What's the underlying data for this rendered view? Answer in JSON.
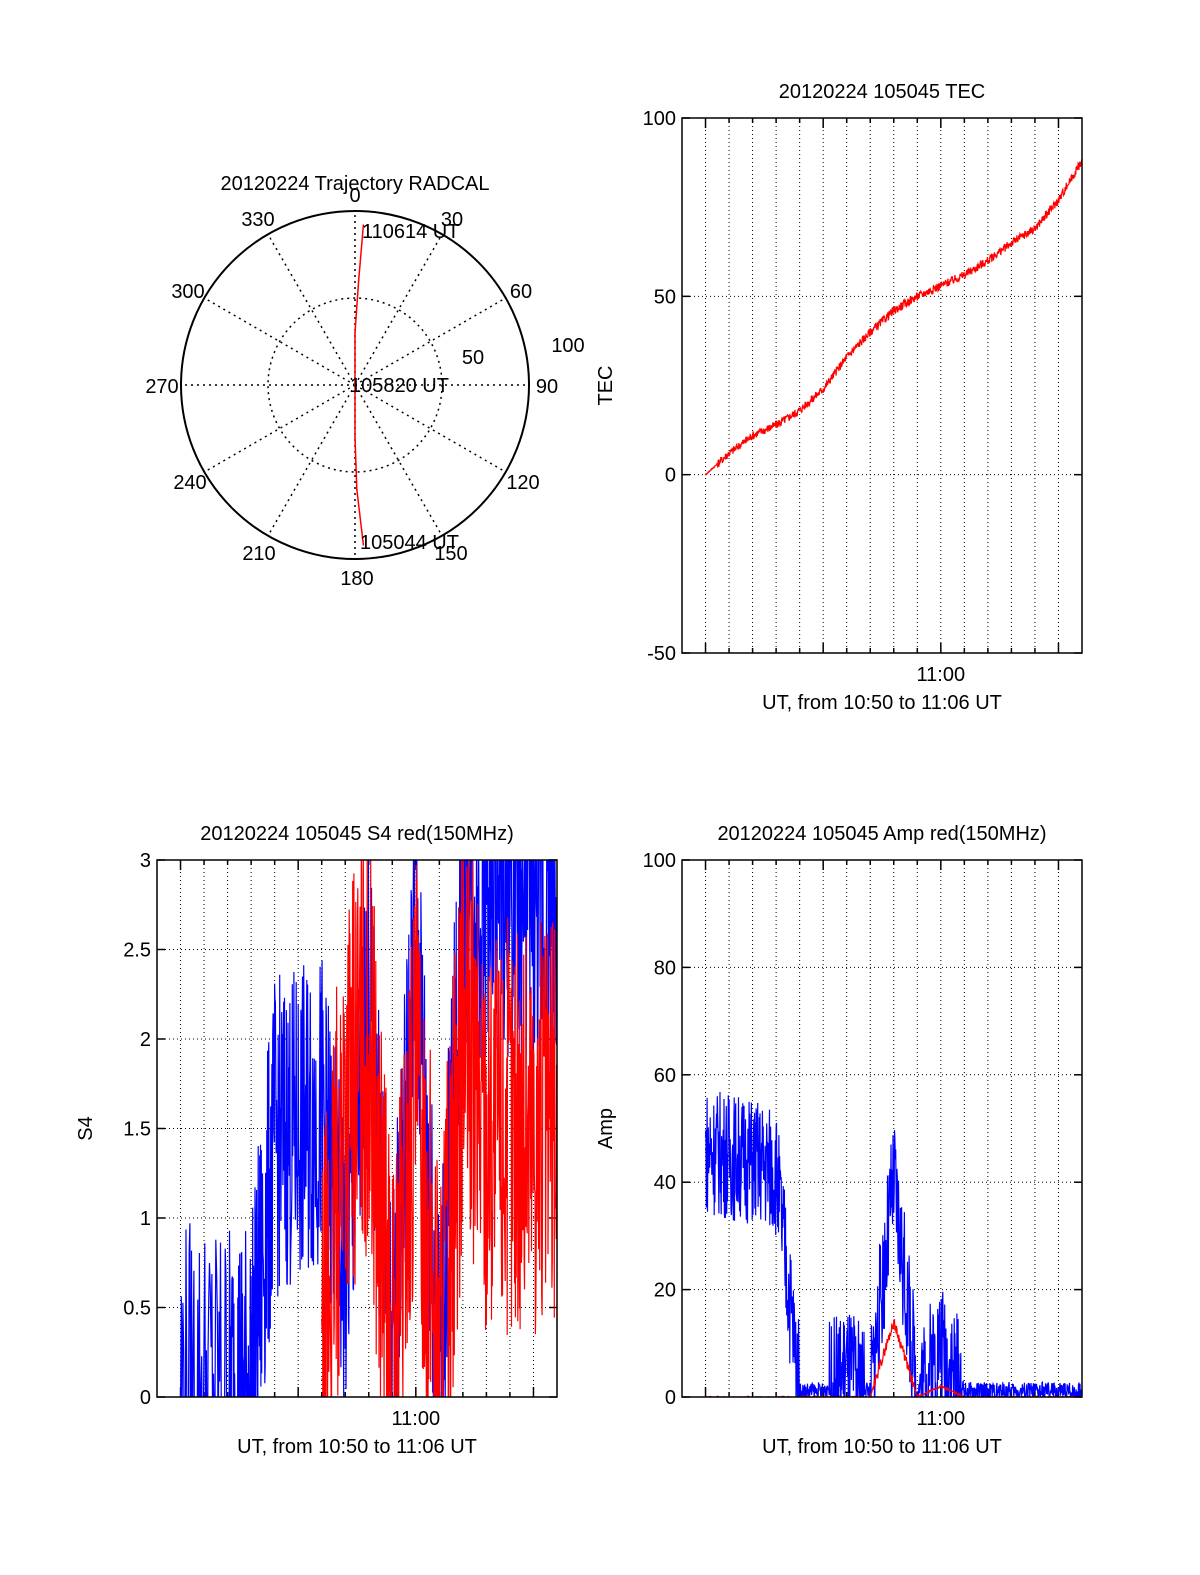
{
  "chart_data": [
    {
      "type": "polar",
      "title": "20120224 Trajectory RADCAL",
      "angle_labels": [
        "0",
        "30",
        "60",
        "90",
        "120",
        "150",
        "180",
        "210",
        "240",
        "270",
        "300",
        "330"
      ],
      "radius_labels": [
        "50",
        "100"
      ],
      "rlim": [
        0,
        100
      ],
      "grid": true,
      "annotations": [
        "110614 UT",
        "105820 UT",
        "105044 UT"
      ],
      "series": [
        {
          "color": "#ff0000",
          "points": [
            {
              "azimuth": 3,
              "radius": 92
            },
            {
              "azimuth": 2,
              "radius": 60
            },
            {
              "azimuth": 0,
              "radius": 30
            },
            {
              "azimuth": 0,
              "radius": 2
            },
            {
              "azimuth": 180,
              "radius": 30
            },
            {
              "azimuth": 179,
              "radius": 60
            },
            {
              "azimuth": 177,
              "radius": 92
            }
          ]
        }
      ]
    },
    {
      "type": "line",
      "title": "20120224 105045 TEC",
      "xlabel": "UT, from 10:50 to 11:06 UT",
      "ylabel": "TEC",
      "xlim": [
        "10:49",
        "11:06"
      ],
      "ylim": [
        -50,
        100
      ],
      "y_ticks": [
        "-50",
        "0",
        "50",
        "100"
      ],
      "x_ticks": [
        "11:00"
      ],
      "grid": true,
      "series": [
        {
          "color": "#ff0000",
          "x": [
            "10:50",
            "10:51",
            "10:52",
            "10:53",
            "10:54",
            "10:55",
            "10:56",
            "10:57",
            "10:58",
            "10:59",
            "11:00",
            "11:01",
            "11:02",
            "11:03",
            "11:04",
            "11:05",
            "11:06"
          ],
          "y": [
            0,
            6,
            11,
            14,
            18,
            24,
            33,
            40,
            46,
            50,
            53,
            56,
            60,
            65,
            69,
            77,
            88
          ]
        }
      ]
    },
    {
      "type": "line",
      "title": "20120224 105045 S4 red(150MHz)",
      "xlabel": "UT, from 10:50 to 11:06 UT",
      "ylabel": "S4",
      "xlim": [
        "10:49",
        "11:06"
      ],
      "ylim": [
        0,
        3
      ],
      "y_ticks": [
        "0",
        "0.5",
        "1",
        "1.5",
        "2",
        "2.5",
        "3"
      ],
      "x_ticks": [
        "11:00"
      ],
      "grid": true,
      "series": [
        {
          "color": "#0000ff",
          "x": [
            "10:50",
            "10:52",
            "10:53",
            "10:54",
            "10:55",
            "10:56",
            "10:57",
            "10:58",
            "10:59",
            "11:00",
            "11:01",
            "11:02",
            "11:03",
            "11:04",
            "11:05",
            "11:06"
          ],
          "y": [
            0.12,
            0.12,
            0.12,
            1.45,
            1.5,
            1.6,
            0.7,
            2.2,
            0.2,
            2.6,
            0.15,
            2.7,
            2.8,
            2.8,
            2.7,
            2.6
          ]
        },
        {
          "color": "#ff0000",
          "x": [
            "10:56",
            "10:57",
            "10:58",
            "10:59",
            "11:00",
            "11:01",
            "11:02",
            "11:03",
            "11:04",
            "11:05",
            "11:06"
          ],
          "y": [
            0.1,
            1.7,
            2.0,
            0.1,
            1.8,
            0.15,
            2.0,
            1.5,
            1.5,
            1.5,
            1.5
          ]
        }
      ]
    },
    {
      "type": "line",
      "title": "20120224 105045 Amp red(150MHz)",
      "xlabel": "UT, from 10:50 to 11:06 UT",
      "ylabel": "Amp",
      "xlim": [
        "10:49",
        "11:06"
      ],
      "ylim": [
        0,
        100
      ],
      "y_ticks": [
        "0",
        "20",
        "40",
        "60",
        "80",
        "100"
      ],
      "x_ticks": [
        "11:00"
      ],
      "grid": true,
      "series": [
        {
          "color": "#0000ff",
          "x": [
            "10:50",
            "10:51",
            "10:52",
            "10:53",
            "10:54",
            "10:55",
            "10:56",
            "10:57",
            "10:58",
            "10:59",
            "11:00",
            "11:01",
            "11:02",
            "11:03",
            "11:04",
            "11:05",
            "11:06"
          ],
          "y": [
            46,
            45,
            44,
            42,
            1,
            1,
            5,
            1,
            40,
            1,
            10,
            1,
            1,
            1,
            1,
            1,
            1
          ]
        },
        {
          "color": "#ff0000",
          "x": [
            "10:50",
            "10:54",
            "10:55",
            "10:57",
            "10:58",
            "10:59",
            "11:00",
            "11:01",
            "11:06"
          ],
          "y": [
            0,
            0,
            0,
            0,
            14,
            0,
            2,
            0,
            0
          ]
        }
      ]
    }
  ]
}
